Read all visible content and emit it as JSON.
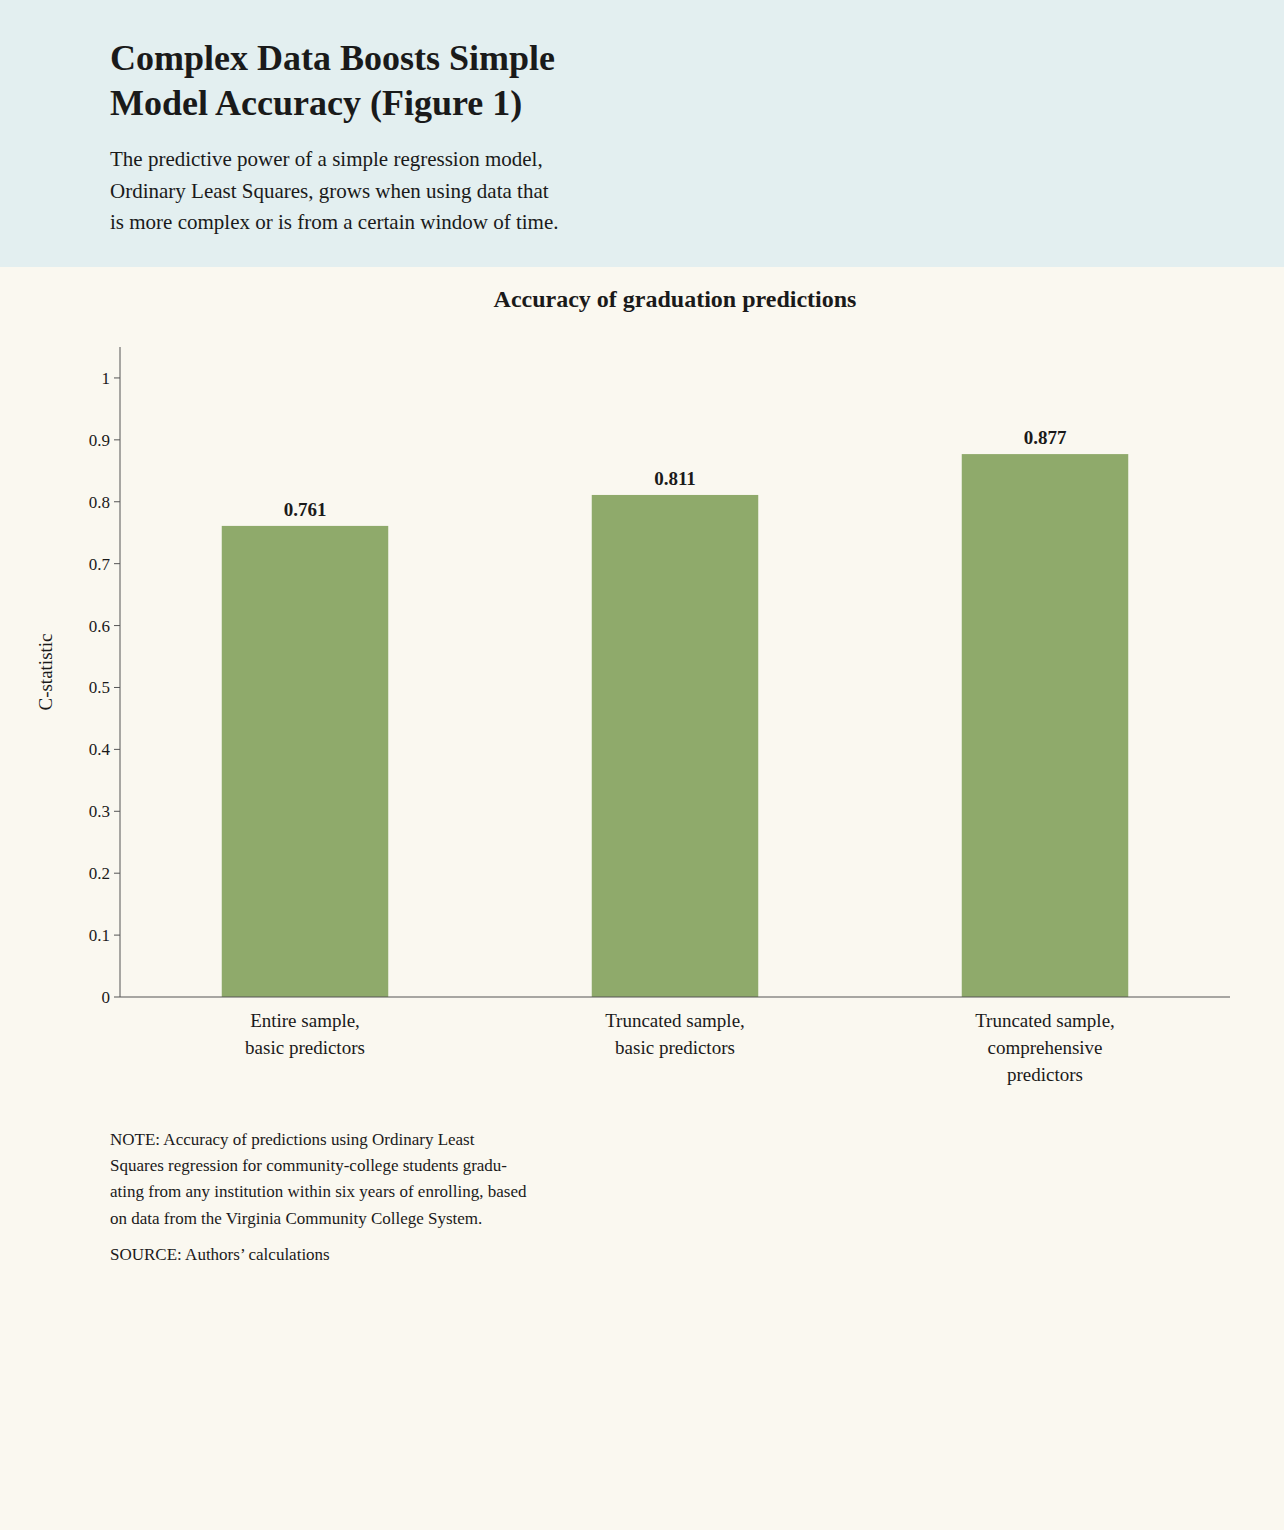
{
  "title": "Complex Data Boosts Simple\nModel Accuracy (Figure 1)",
  "subtitle": "The predictive power of a simple regression model,\nOrdinary Least Squares, grows when using data that\nis more complex or is from a certain window of time.",
  "note": "NOTE: Accuracy of predictions using Ordinary Least\nSquares regression for community-college students gradu-\nating from any institution within six years of enrolling, based\non data from the Virginia Community College System.",
  "source": "SOURCE: Authors’ calculations",
  "chart_data": {
    "type": "bar",
    "title": "Accuracy of graduation predictions",
    "categories": [
      "Entire sample,\nbasic predictors",
      "Truncated sample,\nbasic predictors",
      "Truncated sample,\ncomprehensive\npredictors"
    ],
    "values": [
      0.761,
      0.811,
      0.877
    ],
    "color": "#8faa6b",
    "ylabel": "C-statistic",
    "ylim": [
      0,
      1.05
    ],
    "yticks": [
      0,
      0.1,
      0.2,
      0.3,
      0.4,
      0.5,
      0.6,
      0.7,
      0.8,
      0.9,
      1
    ],
    "grid": false,
    "data_labels": true
  }
}
